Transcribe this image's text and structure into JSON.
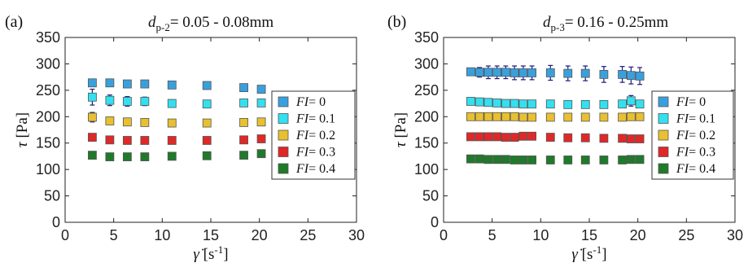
{
  "chart_data": [
    {
      "type": "scatter",
      "panel_label": "(a)",
      "title": "d",
      "title_sub": "p-2",
      "title_rest": "= 0.05 - 0.08mm",
      "xlabel": "γ̇ [s-1]",
      "ylabel": "τ [Pa]",
      "xlim": [
        0,
        30
      ],
      "ylim": [
        0,
        350
      ],
      "xticks": [
        0,
        5,
        10,
        15,
        20,
        25,
        30
      ],
      "yticks": [
        0,
        50,
        100,
        150,
        200,
        250,
        300,
        350
      ],
      "grid": false,
      "legend_position": "right",
      "series": [
        {
          "name": "FI= 0",
          "color": "#3aa0dd",
          "x": [
            2.8,
            4.6,
            6.4,
            8.2,
            11,
            14.6,
            18.4,
            20.2
          ],
          "y": [
            264,
            264,
            262,
            262,
            260,
            259,
            255,
            252
          ],
          "err": [
            5,
            4,
            3,
            3,
            4,
            4,
            5,
            5
          ]
        },
        {
          "name": "FI= 0.1",
          "color": "#33e0f0",
          "x": [
            2.8,
            4.6,
            6.4,
            8.2,
            11,
            14.6,
            18.4,
            20.2
          ],
          "y": [
            237,
            231,
            229,
            229,
            225,
            224,
            226,
            226
          ],
          "err": [
            15,
            10,
            9,
            8,
            7,
            6,
            6,
            6
          ]
        },
        {
          "name": "FI= 0.2",
          "color": "#e8c030",
          "x": [
            2.8,
            4.6,
            6.4,
            8.2,
            11,
            14.6,
            18.4,
            20.2
          ],
          "y": [
            199,
            192,
            190,
            189,
            188,
            188,
            189,
            190
          ],
          "err": [
            9,
            6,
            5,
            4,
            4,
            4,
            4,
            4
          ]
        },
        {
          "name": "FI= 0.3",
          "color": "#e02828",
          "x": [
            2.8,
            4.6,
            6.4,
            8.2,
            11,
            14.6,
            18.4,
            20.2
          ],
          "y": [
            161,
            156,
            155,
            155,
            155,
            155,
            156,
            158
          ],
          "err": [
            6,
            4,
            3,
            3,
            3,
            3,
            3,
            3
          ]
        },
        {
          "name": "FI= 0.4",
          "color": "#1f7a2a",
          "x": [
            2.8,
            4.6,
            6.4,
            8.2,
            11,
            14.6,
            18.4,
            20.2
          ],
          "y": [
            127,
            124,
            124,
            124,
            125,
            126,
            127,
            130
          ],
          "err": [
            5,
            4,
            3,
            3,
            3,
            3,
            3,
            3
          ]
        }
      ]
    },
    {
      "type": "scatter",
      "panel_label": "(b)",
      "title": "d",
      "title_sub": "p-3",
      "title_rest": "= 0.16 - 0.25mm",
      "xlabel": "γ̇ [s-1]",
      "ylabel": "τ [Pa]",
      "xlim": [
        0,
        30
      ],
      "ylim": [
        0,
        350
      ],
      "xticks": [
        0,
        5,
        10,
        15,
        20,
        25,
        30
      ],
      "yticks": [
        0,
        50,
        100,
        150,
        200,
        250,
        300,
        350
      ],
      "grid": false,
      "legend_position": "right",
      "series": [
        {
          "name": "FI= 0",
          "color": "#3aa0dd",
          "x": [
            2.8,
            3.7,
            4.6,
            5.5,
            6.4,
            7.3,
            8.2,
            9.1,
            11,
            12.8,
            14.6,
            16.5,
            18.4,
            19.3,
            20.2
          ],
          "y": [
            285,
            284,
            284,
            284,
            284,
            283,
            283,
            283,
            283,
            282,
            282,
            280,
            280,
            278,
            277
          ],
          "err": [
            6,
            9,
            12,
            12,
            12,
            13,
            13,
            13,
            14,
            14,
            14,
            15,
            15,
            16,
            16
          ]
        },
        {
          "name": "FI= 0.1",
          "color": "#33e0f0",
          "x": [
            2.8,
            3.7,
            4.6,
            5.5,
            6.4,
            7.3,
            8.2,
            9.1,
            11,
            12.8,
            14.6,
            16.5,
            18.4,
            19.3,
            20.2
          ],
          "y": [
            229,
            228,
            227,
            226,
            225,
            225,
            224,
            224,
            224,
            223,
            223,
            223,
            224,
            230,
            224
          ],
          "err": [
            4,
            4,
            4,
            3,
            3,
            3,
            3,
            3,
            3,
            3,
            3,
            3,
            4,
            10,
            5
          ]
        },
        {
          "name": "FI= 0.2",
          "color": "#e8c030",
          "x": [
            2.8,
            3.7,
            4.6,
            5.5,
            6.4,
            7.3,
            8.2,
            9.1,
            11,
            12.8,
            14.6,
            16.5,
            18.4,
            19.3,
            20.2
          ],
          "y": [
            200,
            200,
            200,
            200,
            200,
            200,
            199,
            199,
            199,
            199,
            199,
            199,
            199,
            200,
            200
          ],
          "err": [
            5,
            4,
            4,
            4,
            4,
            4,
            4,
            4,
            4,
            4,
            4,
            4,
            4,
            4,
            4
          ]
        },
        {
          "name": "FI= 0.3",
          "color": "#e02828",
          "x": [
            2.8,
            3.7,
            4.6,
            5.5,
            6.4,
            7.3,
            8.2,
            9.1,
            11,
            12.8,
            14.6,
            16.5,
            18.4,
            19.3,
            20.2
          ],
          "y": [
            162,
            162,
            162,
            162,
            161,
            161,
            163,
            163,
            161,
            160,
            160,
            159,
            159,
            158,
            158
          ],
          "err": [
            4,
            3,
            3,
            3,
            3,
            3,
            3,
            3,
            3,
            3,
            3,
            3,
            3,
            3,
            3
          ]
        },
        {
          "name": "FI= 0.4",
          "color": "#1f7a2a",
          "x": [
            2.8,
            3.7,
            4.6,
            5.5,
            6.4,
            7.3,
            8.2,
            9.1,
            11,
            12.8,
            14.6,
            16.5,
            18.4,
            19.3,
            20.2
          ],
          "y": [
            120,
            120,
            119,
            119,
            119,
            118,
            118,
            118,
            118,
            118,
            118,
            118,
            118,
            119,
            119
          ],
          "err": [
            3,
            3,
            3,
            3,
            3,
            3,
            3,
            3,
            3,
            3,
            3,
            3,
            3,
            3,
            3
          ]
        }
      ]
    }
  ]
}
